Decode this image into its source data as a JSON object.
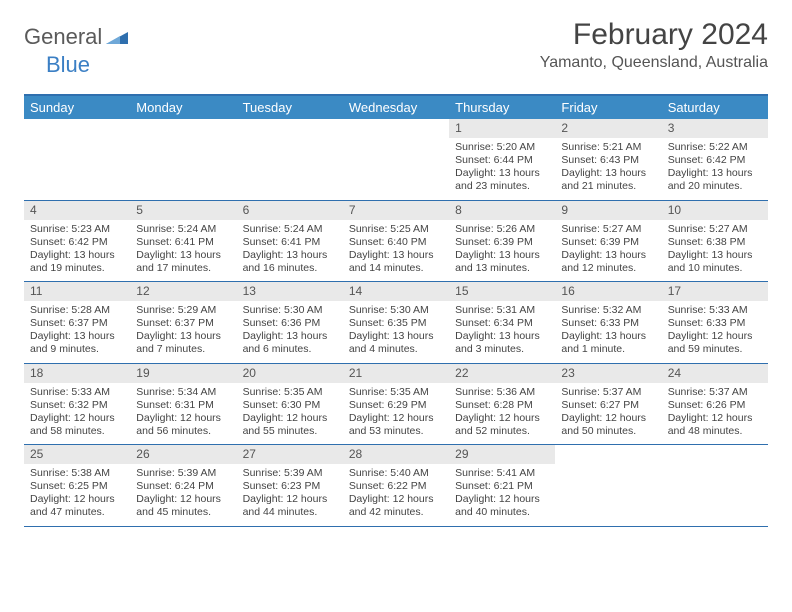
{
  "logo": {
    "part1": "General",
    "part2": "Blue"
  },
  "title": "February 2024",
  "location": "Yamanto, Queensland, Australia",
  "colors": {
    "header_bar": "#3b8ac4",
    "rule": "#2f6fae",
    "daynum_bg": "#e9e9e9",
    "logo_gray": "#5a5a5a",
    "logo_blue": "#3b7fc4"
  },
  "day_names": [
    "Sunday",
    "Monday",
    "Tuesday",
    "Wednesday",
    "Thursday",
    "Friday",
    "Saturday"
  ],
  "weeks": [
    [
      {
        "n": "",
        "sr": "",
        "ss": "",
        "dl": ""
      },
      {
        "n": "",
        "sr": "",
        "ss": "",
        "dl": ""
      },
      {
        "n": "",
        "sr": "",
        "ss": "",
        "dl": ""
      },
      {
        "n": "",
        "sr": "",
        "ss": "",
        "dl": ""
      },
      {
        "n": "1",
        "sr": "Sunrise: 5:20 AM",
        "ss": "Sunset: 6:44 PM",
        "dl": "Daylight: 13 hours and 23 minutes."
      },
      {
        "n": "2",
        "sr": "Sunrise: 5:21 AM",
        "ss": "Sunset: 6:43 PM",
        "dl": "Daylight: 13 hours and 21 minutes."
      },
      {
        "n": "3",
        "sr": "Sunrise: 5:22 AM",
        "ss": "Sunset: 6:42 PM",
        "dl": "Daylight: 13 hours and 20 minutes."
      }
    ],
    [
      {
        "n": "4",
        "sr": "Sunrise: 5:23 AM",
        "ss": "Sunset: 6:42 PM",
        "dl": "Daylight: 13 hours and 19 minutes."
      },
      {
        "n": "5",
        "sr": "Sunrise: 5:24 AM",
        "ss": "Sunset: 6:41 PM",
        "dl": "Daylight: 13 hours and 17 minutes."
      },
      {
        "n": "6",
        "sr": "Sunrise: 5:24 AM",
        "ss": "Sunset: 6:41 PM",
        "dl": "Daylight: 13 hours and 16 minutes."
      },
      {
        "n": "7",
        "sr": "Sunrise: 5:25 AM",
        "ss": "Sunset: 6:40 PM",
        "dl": "Daylight: 13 hours and 14 minutes."
      },
      {
        "n": "8",
        "sr": "Sunrise: 5:26 AM",
        "ss": "Sunset: 6:39 PM",
        "dl": "Daylight: 13 hours and 13 minutes."
      },
      {
        "n": "9",
        "sr": "Sunrise: 5:27 AM",
        "ss": "Sunset: 6:39 PM",
        "dl": "Daylight: 13 hours and 12 minutes."
      },
      {
        "n": "10",
        "sr": "Sunrise: 5:27 AM",
        "ss": "Sunset: 6:38 PM",
        "dl": "Daylight: 13 hours and 10 minutes."
      }
    ],
    [
      {
        "n": "11",
        "sr": "Sunrise: 5:28 AM",
        "ss": "Sunset: 6:37 PM",
        "dl": "Daylight: 13 hours and 9 minutes."
      },
      {
        "n": "12",
        "sr": "Sunrise: 5:29 AM",
        "ss": "Sunset: 6:37 PM",
        "dl": "Daylight: 13 hours and 7 minutes."
      },
      {
        "n": "13",
        "sr": "Sunrise: 5:30 AM",
        "ss": "Sunset: 6:36 PM",
        "dl": "Daylight: 13 hours and 6 minutes."
      },
      {
        "n": "14",
        "sr": "Sunrise: 5:30 AM",
        "ss": "Sunset: 6:35 PM",
        "dl": "Daylight: 13 hours and 4 minutes."
      },
      {
        "n": "15",
        "sr": "Sunrise: 5:31 AM",
        "ss": "Sunset: 6:34 PM",
        "dl": "Daylight: 13 hours and 3 minutes."
      },
      {
        "n": "16",
        "sr": "Sunrise: 5:32 AM",
        "ss": "Sunset: 6:33 PM",
        "dl": "Daylight: 13 hours and 1 minute."
      },
      {
        "n": "17",
        "sr": "Sunrise: 5:33 AM",
        "ss": "Sunset: 6:33 PM",
        "dl": "Daylight: 12 hours and 59 minutes."
      }
    ],
    [
      {
        "n": "18",
        "sr": "Sunrise: 5:33 AM",
        "ss": "Sunset: 6:32 PM",
        "dl": "Daylight: 12 hours and 58 minutes."
      },
      {
        "n": "19",
        "sr": "Sunrise: 5:34 AM",
        "ss": "Sunset: 6:31 PM",
        "dl": "Daylight: 12 hours and 56 minutes."
      },
      {
        "n": "20",
        "sr": "Sunrise: 5:35 AM",
        "ss": "Sunset: 6:30 PM",
        "dl": "Daylight: 12 hours and 55 minutes."
      },
      {
        "n": "21",
        "sr": "Sunrise: 5:35 AM",
        "ss": "Sunset: 6:29 PM",
        "dl": "Daylight: 12 hours and 53 minutes."
      },
      {
        "n": "22",
        "sr": "Sunrise: 5:36 AM",
        "ss": "Sunset: 6:28 PM",
        "dl": "Daylight: 12 hours and 52 minutes."
      },
      {
        "n": "23",
        "sr": "Sunrise: 5:37 AM",
        "ss": "Sunset: 6:27 PM",
        "dl": "Daylight: 12 hours and 50 minutes."
      },
      {
        "n": "24",
        "sr": "Sunrise: 5:37 AM",
        "ss": "Sunset: 6:26 PM",
        "dl": "Daylight: 12 hours and 48 minutes."
      }
    ],
    [
      {
        "n": "25",
        "sr": "Sunrise: 5:38 AM",
        "ss": "Sunset: 6:25 PM",
        "dl": "Daylight: 12 hours and 47 minutes."
      },
      {
        "n": "26",
        "sr": "Sunrise: 5:39 AM",
        "ss": "Sunset: 6:24 PM",
        "dl": "Daylight: 12 hours and 45 minutes."
      },
      {
        "n": "27",
        "sr": "Sunrise: 5:39 AM",
        "ss": "Sunset: 6:23 PM",
        "dl": "Daylight: 12 hours and 44 minutes."
      },
      {
        "n": "28",
        "sr": "Sunrise: 5:40 AM",
        "ss": "Sunset: 6:22 PM",
        "dl": "Daylight: 12 hours and 42 minutes."
      },
      {
        "n": "29",
        "sr": "Sunrise: 5:41 AM",
        "ss": "Sunset: 6:21 PM",
        "dl": "Daylight: 12 hours and 40 minutes."
      },
      {
        "n": "",
        "sr": "",
        "ss": "",
        "dl": ""
      },
      {
        "n": "",
        "sr": "",
        "ss": "",
        "dl": ""
      }
    ]
  ]
}
